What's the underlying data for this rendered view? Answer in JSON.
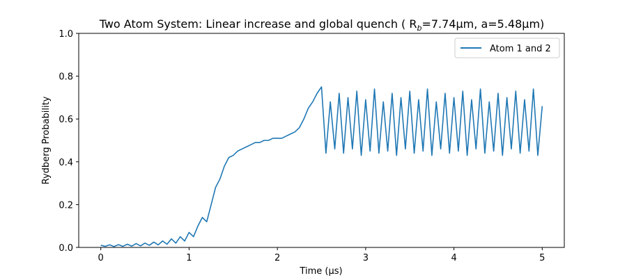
{
  "chart_data": {
    "type": "line",
    "title": "Two Atom System: Linear increase and global quench ( R",
    "title_sub": "b",
    "title_tail": "=7.74μm, a=5.48μm)",
    "xlabel": "Time (μs)",
    "ylabel": "Rydberg Probability",
    "xlim": [
      -0.25,
      5.25
    ],
    "ylim": [
      0.0,
      1.0
    ],
    "xticks": [
      0,
      1,
      2,
      3,
      4,
      5
    ],
    "yticks": [
      0.0,
      0.2,
      0.4,
      0.6,
      0.8,
      1.0
    ],
    "xtick_labels": [
      "0",
      "1",
      "2",
      "3",
      "4",
      "5"
    ],
    "ytick_labels": [
      "0.0",
      "0.2",
      "0.4",
      "0.6",
      "0.8",
      "1.0"
    ],
    "grid": false,
    "legend_position": "top-right",
    "series": [
      {
        "name": "Atom 1 and 2",
        "color": "#1f77b4",
        "x": [
          0.0,
          0.05,
          0.1,
          0.15,
          0.2,
          0.25,
          0.3,
          0.35,
          0.4,
          0.45,
          0.5,
          0.55,
          0.6,
          0.65,
          0.7,
          0.75,
          0.8,
          0.85,
          0.9,
          0.95,
          1.0,
          1.05,
          1.1,
          1.15,
          1.2,
          1.25,
          1.3,
          1.35,
          1.4,
          1.45,
          1.5,
          1.55,
          1.6,
          1.65,
          1.7,
          1.75,
          1.8,
          1.85,
          1.9,
          1.95,
          2.0,
          2.05,
          2.1,
          2.15,
          2.2,
          2.25,
          2.3,
          2.35,
          2.4,
          2.45,
          2.5,
          2.55,
          2.6,
          2.65,
          2.7,
          2.75,
          2.8,
          2.85,
          2.9,
          2.95,
          3.0,
          3.05,
          3.1,
          3.15,
          3.2,
          3.25,
          3.3,
          3.35,
          3.4,
          3.45,
          3.5,
          3.55,
          3.6,
          3.65,
          3.7,
          3.75,
          3.8,
          3.85,
          3.9,
          3.95,
          4.0,
          4.05,
          4.1,
          4.15,
          4.2,
          4.25,
          4.3,
          4.35,
          4.4,
          4.45,
          4.5,
          4.55,
          4.6,
          4.65,
          4.7,
          4.75,
          4.8,
          4.85,
          4.9,
          4.95,
          5.0
        ],
        "y": [
          0.01,
          0.005,
          0.012,
          0.004,
          0.013,
          0.005,
          0.015,
          0.006,
          0.018,
          0.007,
          0.02,
          0.01,
          0.025,
          0.012,
          0.03,
          0.015,
          0.04,
          0.02,
          0.05,
          0.03,
          0.07,
          0.05,
          0.1,
          0.14,
          0.12,
          0.2,
          0.28,
          0.32,
          0.38,
          0.42,
          0.43,
          0.45,
          0.46,
          0.47,
          0.48,
          0.49,
          0.49,
          0.5,
          0.5,
          0.51,
          0.51,
          0.51,
          0.52,
          0.53,
          0.54,
          0.56,
          0.6,
          0.65,
          0.68,
          0.72,
          0.75,
          0.44,
          0.68,
          0.46,
          0.72,
          0.44,
          0.7,
          0.46,
          0.73,
          0.43,
          0.69,
          0.45,
          0.74,
          0.44,
          0.68,
          0.45,
          0.72,
          0.43,
          0.7,
          0.46,
          0.73,
          0.44,
          0.69,
          0.45,
          0.74,
          0.43,
          0.68,
          0.46,
          0.72,
          0.44,
          0.7,
          0.45,
          0.73,
          0.43,
          0.69,
          0.46,
          0.74,
          0.44,
          0.68,
          0.45,
          0.72,
          0.43,
          0.7,
          0.46,
          0.73,
          0.44,
          0.69,
          0.45,
          0.74,
          0.43,
          0.66
        ]
      }
    ]
  }
}
